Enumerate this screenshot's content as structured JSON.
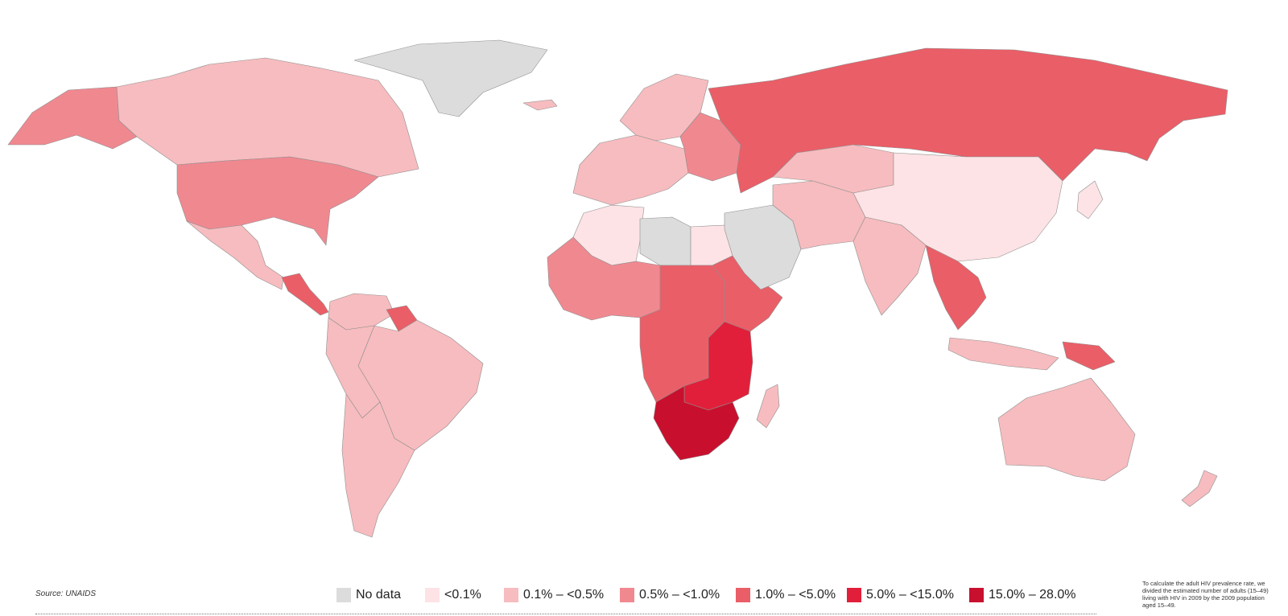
{
  "source_note": "Source: UNAIDS",
  "method_note": "To calculate the adult HIV prevalence rate, we divided the estimated number of adults (15–49) living with HIV in 2009 by the 2009 population aged 15–49.",
  "legend": [
    {
      "label": "No data",
      "color": "#dcdcdc"
    },
    {
      "label": "<0.1%",
      "color": "#fde3e5"
    },
    {
      "label": "0.1% – <0.5%",
      "color": "#f7bcbf"
    },
    {
      "label": "0.5% – <1.0%",
      "color": "#f08890"
    },
    {
      "label": "1.0% – <5.0%",
      "color": "#ea5e67"
    },
    {
      "label": "5.0% – <15.0%",
      "color": "#e21f3a"
    },
    {
      "label": "15.0% – 28.0%",
      "color": "#c8102e"
    }
  ],
  "regions": [
    {
      "id": "alaska",
      "category": 3
    },
    {
      "id": "canada",
      "category": 2
    },
    {
      "id": "usa",
      "category": 3
    },
    {
      "id": "mexico",
      "category": 2
    },
    {
      "id": "central-america",
      "category": 4
    },
    {
      "id": "greenland",
      "category": 0
    },
    {
      "id": "iceland",
      "category": 2
    },
    {
      "id": "colombia-venezuela",
      "category": 2
    },
    {
      "id": "guyanas",
      "category": 4
    },
    {
      "id": "brazil",
      "category": 2
    },
    {
      "id": "andes",
      "category": 2
    },
    {
      "id": "southern-cone",
      "category": 2
    },
    {
      "id": "western-europe",
      "category": 2
    },
    {
      "id": "scandinavia",
      "category": 2
    },
    {
      "id": "eastern-europe",
      "category": 3
    },
    {
      "id": "russia",
      "category": 4
    },
    {
      "id": "north-africa",
      "category": 1
    },
    {
      "id": "libya",
      "category": 0
    },
    {
      "id": "egypt",
      "category": 1
    },
    {
      "id": "west-africa",
      "category": 3
    },
    {
      "id": "central-africa",
      "category": 4
    },
    {
      "id": "east-africa",
      "category": 4
    },
    {
      "id": "southern-east-africa",
      "category": 5
    },
    {
      "id": "southern-africa",
      "category": 6
    },
    {
      "id": "madagascar",
      "category": 2
    },
    {
      "id": "middle-east",
      "category": 0
    },
    {
      "id": "iran-central-asia",
      "category": 2
    },
    {
      "id": "kazakhstan",
      "category": 2
    },
    {
      "id": "china-mongolia",
      "category": 1
    },
    {
      "id": "india",
      "category": 2
    },
    {
      "id": "southeast-asia",
      "category": 4
    },
    {
      "id": "indonesia",
      "category": 2
    },
    {
      "id": "papua-new-guinea",
      "category": 4
    },
    {
      "id": "australia",
      "category": 2
    },
    {
      "id": "new-zealand",
      "category": 2
    },
    {
      "id": "japan",
      "category": 1
    }
  ]
}
